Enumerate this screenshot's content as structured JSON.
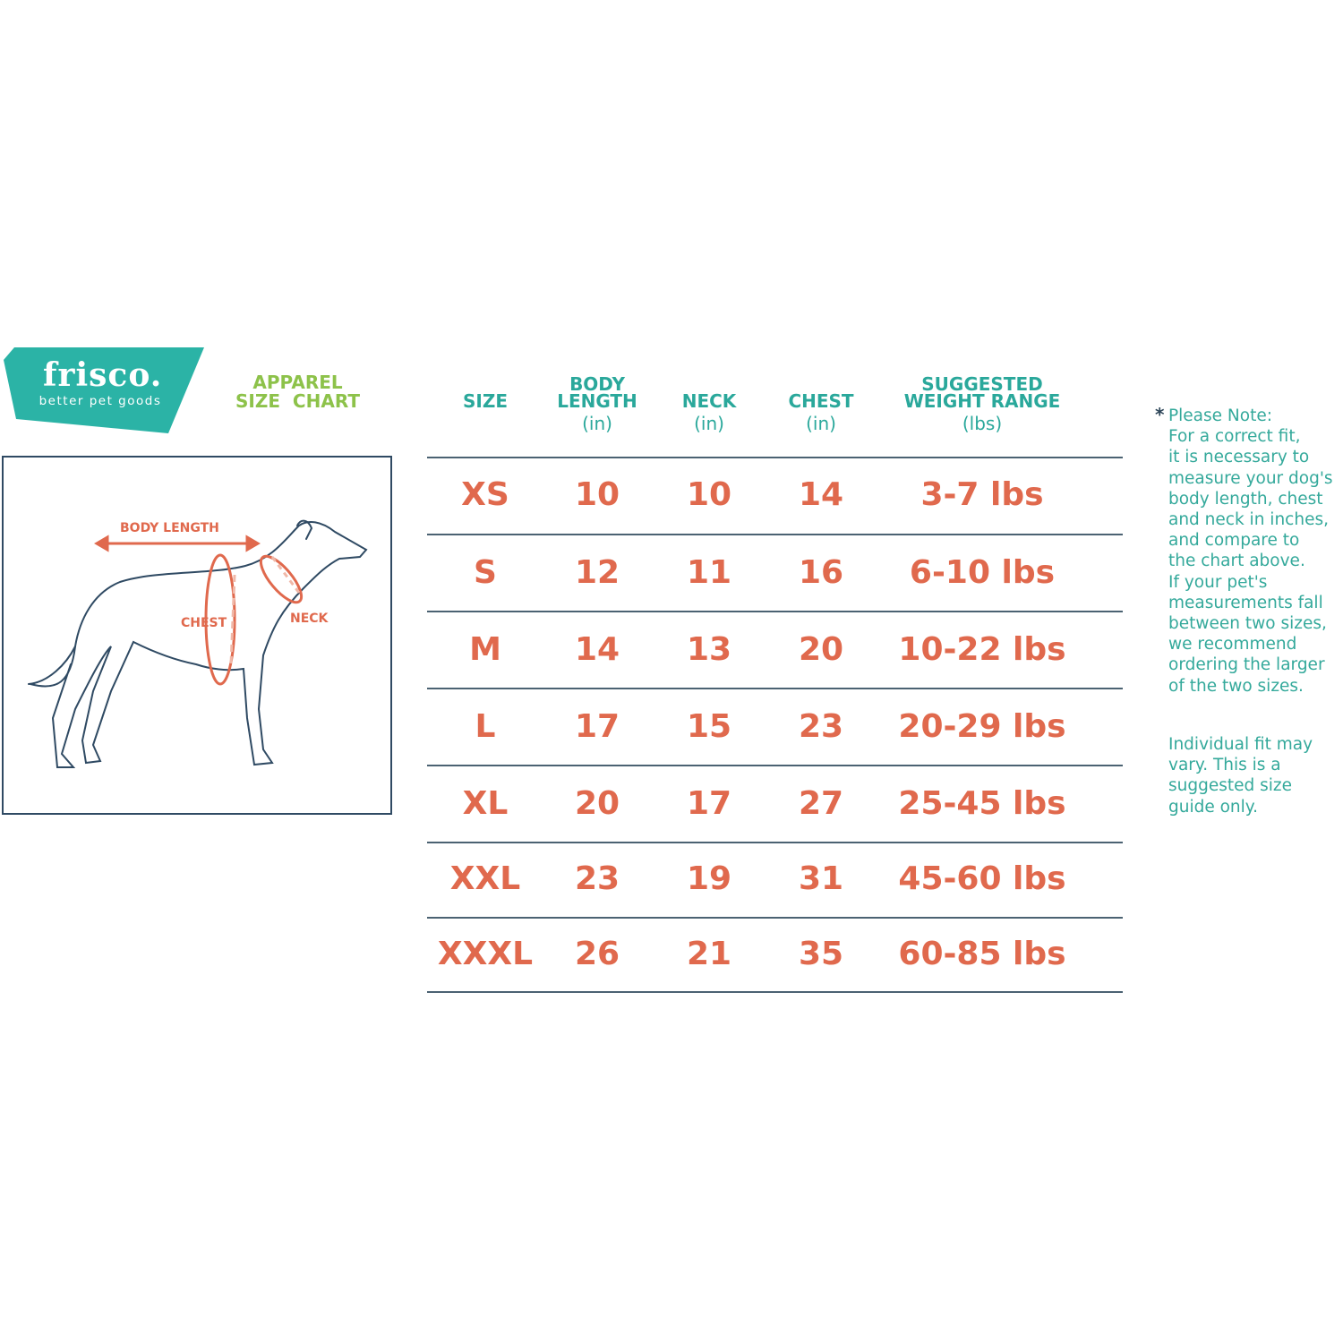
{
  "brand": {
    "name": "frisco.",
    "tagline": "better pet goods",
    "color": "#2bb3a6"
  },
  "title": {
    "line1": "APPAREL",
    "line2": "SIZE  CHART",
    "color": "#8dc24a"
  },
  "diagram": {
    "labels": {
      "body_length": "BODY LENGTH",
      "chest": "CHEST",
      "neck": "NECK"
    },
    "accent": "#e0694d"
  },
  "table": {
    "headers": [
      {
        "line1": "",
        "line2": "SIZE",
        "unit": ""
      },
      {
        "line1": "BODY",
        "line2": "LENGTH",
        "unit": "(in)"
      },
      {
        "line1": "",
        "line2": "NECK",
        "unit": "(in)"
      },
      {
        "line1": "",
        "line2": "CHEST",
        "unit": "(in)"
      },
      {
        "line1": "SUGGESTED",
        "line2": "WEIGHT RANGE",
        "unit": "(lbs)"
      }
    ],
    "rows": [
      [
        "XS",
        "10",
        "10",
        "14",
        "3-7 lbs"
      ],
      [
        "S",
        "12",
        "11",
        "16",
        "6-10 lbs"
      ],
      [
        "M",
        "14",
        "13",
        "20",
        "10-22 lbs"
      ],
      [
        "L",
        "17",
        "15",
        "23",
        "20-29 lbs"
      ],
      [
        "XL",
        "20",
        "17",
        "27",
        "25-45 lbs"
      ],
      [
        "XXL",
        "23",
        "19",
        "31",
        "45-60 lbs"
      ],
      [
        "XXXL",
        "26",
        "21",
        "35",
        "60-85 lbs"
      ]
    ],
    "header_color": "#2aa89b",
    "value_color": "#e0694d"
  },
  "note": {
    "star": "*",
    "text": "Please Note:\nFor a correct fit,\nit is necessary to\nmeasure your dog's\nbody length, chest\nand neck in inches,\nand compare to\nthe chart above.\nIf your pet's\nmeasurements fall\nbetween two sizes,\nwe recommend\nordering the larger\nof the two sizes.",
    "disclaimer": "Individual fit may\nvary. This is a\nsuggested size\nguide only."
  }
}
